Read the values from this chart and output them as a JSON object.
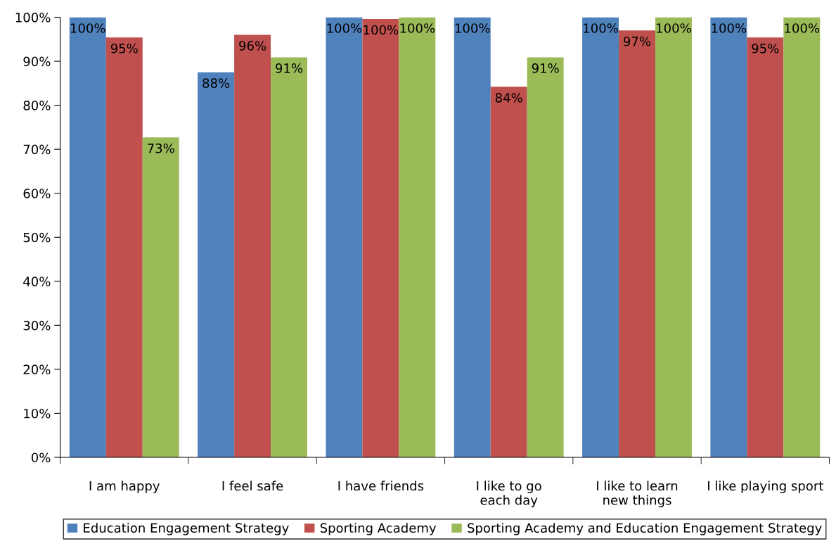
{
  "chart_data": {
    "type": "bar",
    "categories": [
      "I am happy",
      "I feel safe",
      "I have friends",
      "I like to go\neach day",
      "I like to learn\nnew things",
      "I like playing sport"
    ],
    "series": [
      {
        "name": "Education Engagement Strategy",
        "color": "#4f81bd",
        "values": [
          100,
          87.5,
          100,
          100,
          100,
          100
        ],
        "value_labels": [
          "100%",
          "88%",
          "100%",
          "100%",
          "100%",
          "100%"
        ]
      },
      {
        "name": "Sporting Academy",
        "color": "#c0504d",
        "values": [
          95.4,
          96,
          99.6,
          84.2,
          97,
          95.4
        ],
        "value_labels": [
          "95%",
          "96%",
          "100%",
          "84%",
          "97%",
          "95%"
        ]
      },
      {
        "name": "Sporting Academy and Education Engagement Strategy",
        "color": "#9bbb59",
        "values": [
          72.7,
          90.9,
          100,
          90.9,
          100,
          100
        ],
        "value_labels": [
          "73%",
          "91%",
          "100%",
          "91%",
          "100%",
          "100%"
        ]
      }
    ],
    "ylim": [
      0,
      100
    ],
    "yticks": [
      {
        "value": 0,
        "label": "0%"
      },
      {
        "value": 10,
        "label": "10%"
      },
      {
        "value": 20,
        "label": "20%"
      },
      {
        "value": 30,
        "label": "30%"
      },
      {
        "value": 40,
        "label": "40%"
      },
      {
        "value": 50,
        "label": "50%"
      },
      {
        "value": 60,
        "label": "60%"
      },
      {
        "value": 70,
        "label": "70%"
      },
      {
        "value": 80,
        "label": "80%"
      },
      {
        "value": 90,
        "label": "90%"
      },
      {
        "value": 100,
        "label": "100%"
      }
    ],
    "grid": false,
    "legend": "bottom"
  }
}
